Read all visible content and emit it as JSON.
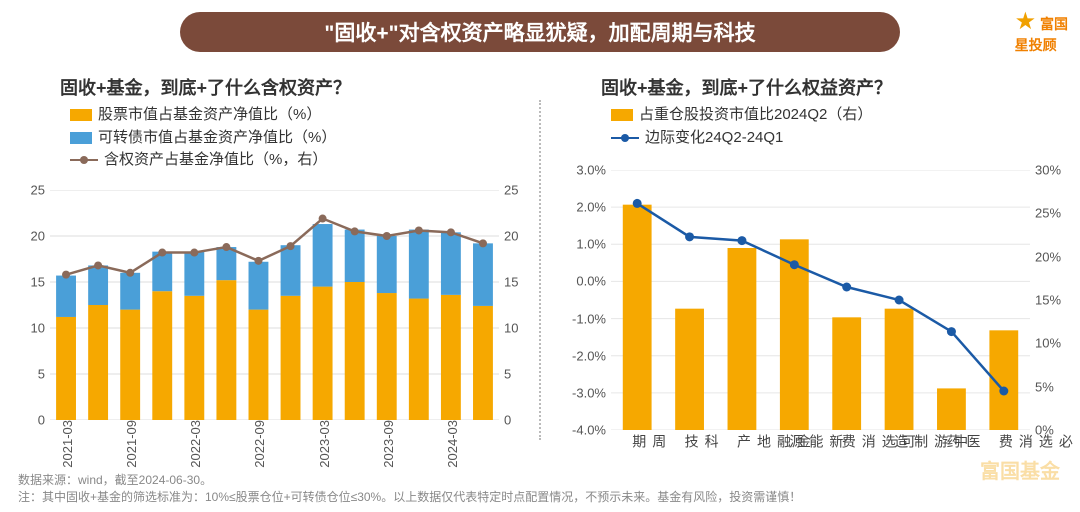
{
  "banner": {
    "text": "\"固收+\"对含权资产略显犹疑，加配周期与科技"
  },
  "logo": {
    "star": "★",
    "line1": "富国",
    "line2": "星投顾"
  },
  "watermark": "富国基金",
  "panel_left": {
    "title": "固收+基金，到底+了什么含权资产？",
    "legend": {
      "bar1": "股票市值占基金资产净值比（%）",
      "bar2": "可转债市值占基金资产净值比（%）",
      "line": "含权资产占基金净值比（%，右）"
    },
    "colors": {
      "bar1": "#f6a800",
      "bar2": "#4a9fd8",
      "line": "#8a6a5a",
      "dot": "#8a6a5a"
    },
    "y_left": {
      "min": 0,
      "max": 25,
      "step": 5
    },
    "y_right": {
      "min": 0,
      "max": 25,
      "step": 5
    },
    "x_labels": [
      "2021-03",
      "",
      "2021-09",
      "",
      "2022-03",
      "",
      "2022-09",
      "",
      "2023-03",
      "",
      "2023-09",
      "",
      "2024-03",
      ""
    ],
    "series": {
      "stock": [
        11.2,
        12.5,
        12.0,
        14.0,
        13.5,
        15.2,
        12.0,
        13.5,
        14.5,
        15.0,
        13.8,
        13.2,
        13.6,
        12.4
      ],
      "cb": [
        4.5,
        4.3,
        4.0,
        4.3,
        4.8,
        3.6,
        5.2,
        5.5,
        6.8,
        5.7,
        6.2,
        7.5,
        6.8,
        6.8
      ],
      "total": [
        15.8,
        16.8,
        16.0,
        18.2,
        18.2,
        18.8,
        17.3,
        18.9,
        21.9,
        20.5,
        20.0,
        20.6,
        20.4,
        19.2
      ]
    }
  },
  "panel_right": {
    "title": "固收+基金，到底+了什么权益资产？",
    "legend": {
      "bar": "占重仓股投资市值比2024Q2（右）",
      "line": "边际变化24Q2-24Q1"
    },
    "colors": {
      "bar": "#f6a800",
      "line": "#1b5aa6",
      "dot": "#1b5aa6"
    },
    "y_left": {
      "min": -4,
      "max": 3,
      "step": 1,
      "suffix": "%",
      "decimals": 1
    },
    "y_right": {
      "min": 0,
      "max": 30,
      "step": 5,
      "suffix": "%"
    },
    "x_labels": [
      "周期",
      "科技",
      "金融地产",
      "新能源",
      "可选消费",
      "中游制造",
      "医药",
      "必选消费"
    ],
    "series": {
      "bar_pct": [
        26,
        14,
        21,
        22,
        13,
        14,
        4.8,
        11.5
      ],
      "line_chg": [
        2.1,
        1.2,
        1.1,
        0.45,
        -0.15,
        -0.5,
        -1.35,
        -2.95
      ]
    }
  },
  "footer": {
    "l1": "数据来源：wind，截至2024-06-30。",
    "l2": "注：其中固收+基金的筛选标准为：10%≤股票仓位+可转债仓位≤30%。以上数据仅代表特定时点配置情况，不预示未来。基金有风险，投资需谨慎！"
  }
}
